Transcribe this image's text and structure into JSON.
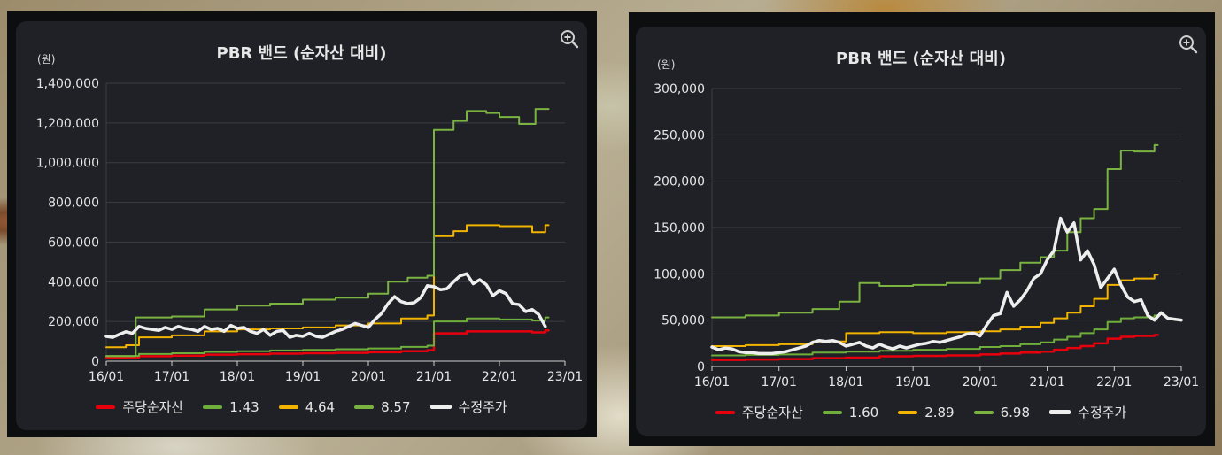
{
  "colors": {
    "bps": "#e8000d",
    "low": "#6fae3b",
    "mid": "#f2b400",
    "high": "#7bb341",
    "price": "#eeeeee",
    "grid": "#3a3d44",
    "panel": "#1f2126"
  },
  "charts": [
    {
      "title": "PBR 밴드 (순자산 대비)",
      "unit": "(원)",
      "zoom_icon": "zoom-in-icon",
      "legend": [
        {
          "label": "주당순자산",
          "key": "bps"
        },
        {
          "label": "1.43",
          "key": "low"
        },
        {
          "label": "4.64",
          "key": "mid"
        },
        {
          "label": "8.57",
          "key": "high"
        },
        {
          "label": "수정주가",
          "key": "price"
        }
      ],
      "y_tick_labels": [
        "0",
        "200,000",
        "400,000",
        "600,000",
        "800,000",
        "1,000,000",
        "1,200,000",
        "1,400,000"
      ],
      "x_tick_labels": [
        "16/01",
        "17/01",
        "18/01",
        "19/01",
        "20/01",
        "21/01",
        "22/01",
        "23/01"
      ]
    },
    {
      "title": "PBR 밴드 (순자산 대비)",
      "unit": "(원)",
      "zoom_icon": "zoom-in-icon",
      "legend": [
        {
          "label": "주당순자산",
          "key": "bps"
        },
        {
          "label": "1.60",
          "key": "low"
        },
        {
          "label": "2.89",
          "key": "mid"
        },
        {
          "label": "6.98",
          "key": "high"
        },
        {
          "label": "수정주가",
          "key": "price"
        }
      ],
      "y_tick_labels": [
        "0",
        "50,000",
        "100,000",
        "150,000",
        "200,000",
        "250,000",
        "300,000"
      ],
      "x_tick_labels": [
        "16/01",
        "17/01",
        "18/01",
        "19/01",
        "20/01",
        "21/01",
        "22/01",
        "23/01"
      ]
    }
  ],
  "chart_data": [
    {
      "type": "line",
      "title": "PBR 밴드 (순자산 대비)",
      "ylabel": "(원)",
      "xlim": [
        2016.0,
        2023.0
      ],
      "ylim": [
        0,
        1400000
      ],
      "yticks": [
        0,
        200000,
        400000,
        600000,
        800000,
        1000000,
        1200000,
        1400000
      ],
      "xticks": [
        2016,
        2017,
        2018,
        2019,
        2020,
        2021,
        2022,
        2023
      ],
      "grid": true,
      "legend_position": "bottom",
      "series": [
        {
          "name": "주당순자산",
          "key": "bps",
          "width": 2.5,
          "step": true,
          "x": [
            2016.0,
            2016.5,
            2017.0,
            2017.5,
            2018.0,
            2018.5,
            2019.0,
            2019.5,
            2020.0,
            2020.5,
            2020.9,
            2021.0,
            2021.5,
            2022.0,
            2022.5,
            2022.7
          ],
          "y": [
            18000,
            25000,
            28000,
            33000,
            35000,
            38000,
            40000,
            42000,
            45000,
            50000,
            55000,
            140000,
            150000,
            150000,
            145000,
            155000
          ]
        },
        {
          "name": "1.43",
          "key": "low",
          "width": 2,
          "step": true,
          "x": [
            2016.0,
            2016.5,
            2017.0,
            2017.5,
            2018.0,
            2018.5,
            2019.0,
            2019.5,
            2020.0,
            2020.5,
            2020.9,
            2021.0,
            2021.5,
            2022.0,
            2022.5,
            2022.7
          ],
          "y": [
            26000,
            36000,
            40000,
            47000,
            50000,
            54000,
            57000,
            60000,
            64000,
            72000,
            78000,
            200000,
            215000,
            210000,
            205000,
            220000
          ]
        },
        {
          "name": "4.64",
          "key": "mid",
          "width": 2,
          "step": true,
          "x": [
            2016.0,
            2016.3,
            2016.5,
            2017.0,
            2017.5,
            2018.0,
            2018.5,
            2019.0,
            2019.5,
            2020.0,
            2020.5,
            2020.9,
            2021.0,
            2021.3,
            2021.5,
            2022.0,
            2022.5,
            2022.7
          ],
          "y": [
            70000,
            80000,
            120000,
            130000,
            150000,
            160000,
            165000,
            170000,
            180000,
            190000,
            215000,
            230000,
            630000,
            655000,
            685000,
            680000,
            650000,
            685000
          ]
        },
        {
          "name": "8.57",
          "key": "high",
          "width": 2,
          "step": true,
          "x": [
            2016.0,
            2016.45,
            2017.0,
            2017.5,
            2018.0,
            2018.5,
            2019.0,
            2019.5,
            2020.0,
            2020.3,
            2020.6,
            2020.9,
            2021.0,
            2021.3,
            2021.5,
            2021.8,
            2022.0,
            2022.3,
            2022.55,
            2022.7
          ],
          "y": [
            25000,
            220000,
            225000,
            260000,
            280000,
            290000,
            310000,
            320000,
            340000,
            400000,
            420000,
            430000,
            1165000,
            1210000,
            1260000,
            1250000,
            1230000,
            1195000,
            1270000,
            1270000
          ]
        },
        {
          "name": "수정주가",
          "key": "price",
          "width": 3.5,
          "step": false,
          "x": [
            2016.0,
            2016.1,
            2016.2,
            2016.3,
            2016.4,
            2016.5,
            2016.6,
            2016.7,
            2016.8,
            2016.9,
            2017.0,
            2017.1,
            2017.2,
            2017.3,
            2017.4,
            2017.5,
            2017.6,
            2017.7,
            2017.8,
            2017.9,
            2018.0,
            2018.1,
            2018.2,
            2018.3,
            2018.4,
            2018.5,
            2018.6,
            2018.7,
            2018.8,
            2018.9,
            2019.0,
            2019.1,
            2019.2,
            2019.3,
            2019.4,
            2019.5,
            2019.6,
            2019.7,
            2019.8,
            2019.9,
            2020.0,
            2020.1,
            2020.2,
            2020.3,
            2020.4,
            2020.5,
            2020.6,
            2020.7,
            2020.8,
            2020.9,
            2021.0,
            2021.1,
            2021.2,
            2021.3,
            2021.4,
            2021.5,
            2021.6,
            2021.7,
            2021.8,
            2021.9,
            2022.0,
            2022.1,
            2022.2,
            2022.3,
            2022.4,
            2022.5,
            2022.6,
            2022.7
          ],
          "y": [
            125000,
            120000,
            135000,
            148000,
            140000,
            175000,
            165000,
            160000,
            155000,
            170000,
            160000,
            175000,
            165000,
            160000,
            150000,
            175000,
            160000,
            165000,
            150000,
            180000,
            165000,
            170000,
            150000,
            140000,
            160000,
            130000,
            150000,
            155000,
            120000,
            130000,
            125000,
            140000,
            125000,
            120000,
            135000,
            150000,
            160000,
            175000,
            190000,
            180000,
            170000,
            210000,
            240000,
            290000,
            325000,
            300000,
            290000,
            295000,
            320000,
            380000,
            375000,
            360000,
            365000,
            400000,
            430000,
            440000,
            390000,
            410000,
            385000,
            330000,
            355000,
            340000,
            290000,
            285000,
            250000,
            260000,
            235000,
            175000
          ]
        }
      ]
    },
    {
      "type": "line",
      "title": "PBR 밴드 (순자산 대비)",
      "ylabel": "(원)",
      "xlim": [
        2016.0,
        2023.0
      ],
      "ylim": [
        0,
        300000
      ],
      "yticks": [
        0,
        50000,
        100000,
        150000,
        200000,
        250000,
        300000
      ],
      "xticks": [
        2016,
        2017,
        2018,
        2019,
        2020,
        2021,
        2022,
        2023
      ],
      "grid": true,
      "legend_position": "bottom",
      "series": [
        {
          "name": "주당순자산",
          "key": "bps",
          "width": 2.5,
          "step": true,
          "x": [
            2016.0,
            2016.5,
            2017.0,
            2017.5,
            2018.0,
            2018.5,
            2019.0,
            2019.5,
            2020.0,
            2020.3,
            2020.6,
            2020.9,
            2021.1,
            2021.3,
            2021.5,
            2021.7,
            2021.9,
            2022.1,
            2022.3,
            2022.6
          ],
          "y": [
            7000,
            7500,
            8000,
            9000,
            9500,
            11000,
            11500,
            12000,
            13000,
            14000,
            15000,
            16000,
            18000,
            20000,
            22000,
            25000,
            30000,
            32000,
            33000,
            34000
          ]
        },
        {
          "name": "1.60",
          "key": "low",
          "width": 2,
          "step": true,
          "x": [
            2016.0,
            2016.5,
            2017.0,
            2017.5,
            2018.0,
            2018.5,
            2019.0,
            2019.5,
            2020.0,
            2020.3,
            2020.6,
            2020.9,
            2021.1,
            2021.3,
            2021.5,
            2021.7,
            2021.9,
            2022.1,
            2022.3,
            2022.6
          ],
          "y": [
            12000,
            12500,
            13000,
            15000,
            16000,
            17000,
            18000,
            19000,
            21000,
            22000,
            24000,
            26000,
            29000,
            32000,
            36000,
            40000,
            48000,
            52000,
            53000,
            55000
          ]
        },
        {
          "name": "2.89",
          "key": "mid",
          "width": 2,
          "step": true,
          "x": [
            2016.0,
            2016.5,
            2017.0,
            2017.5,
            2018.0,
            2018.5,
            2019.0,
            2019.5,
            2020.0,
            2020.3,
            2020.6,
            2020.9,
            2021.1,
            2021.3,
            2021.5,
            2021.7,
            2021.9,
            2022.1,
            2022.3,
            2022.6
          ],
          "y": [
            22000,
            23000,
            24000,
            27000,
            36000,
            37000,
            36000,
            37000,
            38000,
            40000,
            43000,
            47000,
            52000,
            58000,
            65000,
            73000,
            88000,
            93000,
            95000,
            99000
          ]
        },
        {
          "name": "6.98",
          "key": "high",
          "width": 2,
          "step": true,
          "x": [
            2016.0,
            2016.5,
            2017.0,
            2017.5,
            2017.9,
            2018.2,
            2018.5,
            2019.0,
            2019.5,
            2020.0,
            2020.3,
            2020.6,
            2020.9,
            2021.1,
            2021.3,
            2021.5,
            2021.7,
            2021.9,
            2022.1,
            2022.3,
            2022.6
          ],
          "y": [
            53000,
            55000,
            58000,
            62000,
            70000,
            90000,
            87000,
            88000,
            90000,
            95000,
            104000,
            112000,
            118000,
            125000,
            145000,
            160000,
            170000,
            213000,
            233000,
            232000,
            239000
          ]
        },
        {
          "name": "수정주가",
          "key": "price",
          "width": 3.5,
          "step": false,
          "x": [
            2016.0,
            2016.1,
            2016.2,
            2016.3,
            2016.4,
            2016.5,
            2016.6,
            2016.7,
            2016.8,
            2016.9,
            2017.0,
            2017.1,
            2017.2,
            2017.3,
            2017.4,
            2017.5,
            2017.6,
            2017.7,
            2017.8,
            2017.9,
            2018.0,
            2018.1,
            2018.2,
            2018.3,
            2018.4,
            2018.5,
            2018.6,
            2018.7,
            2018.8,
            2018.9,
            2019.0,
            2019.1,
            2019.2,
            2019.3,
            2019.4,
            2019.5,
            2019.6,
            2019.7,
            2019.8,
            2019.9,
            2020.0,
            2020.1,
            2020.2,
            2020.3,
            2020.4,
            2020.5,
            2020.6,
            2020.7,
            2020.8,
            2020.9,
            2021.0,
            2021.1,
            2021.2,
            2021.3,
            2021.4,
            2021.5,
            2021.6,
            2021.7,
            2021.8,
            2021.9,
            2022.0,
            2022.1,
            2022.2,
            2022.3,
            2022.4,
            2022.5,
            2022.6,
            2022.7,
            2022.8,
            2022.9,
            2023.0
          ],
          "y": [
            21000,
            18000,
            20000,
            19000,
            16000,
            15000,
            15000,
            14000,
            14000,
            14000,
            15000,
            16000,
            18000,
            20000,
            22000,
            26000,
            28000,
            27000,
            28000,
            26000,
            22000,
            24000,
            26000,
            22000,
            20000,
            24000,
            21000,
            19000,
            22000,
            20000,
            22000,
            24000,
            25000,
            27000,
            26000,
            28000,
            30000,
            32000,
            35000,
            36000,
            33000,
            45000,
            55000,
            57000,
            80000,
            65000,
            72000,
            82000,
            95000,
            100000,
            115000,
            125000,
            160000,
            145000,
            155000,
            115000,
            125000,
            110000,
            85000,
            95000,
            105000,
            88000,
            75000,
            70000,
            72000,
            55000,
            50000,
            58000,
            52000,
            51000,
            50000
          ]
        }
      ]
    }
  ]
}
